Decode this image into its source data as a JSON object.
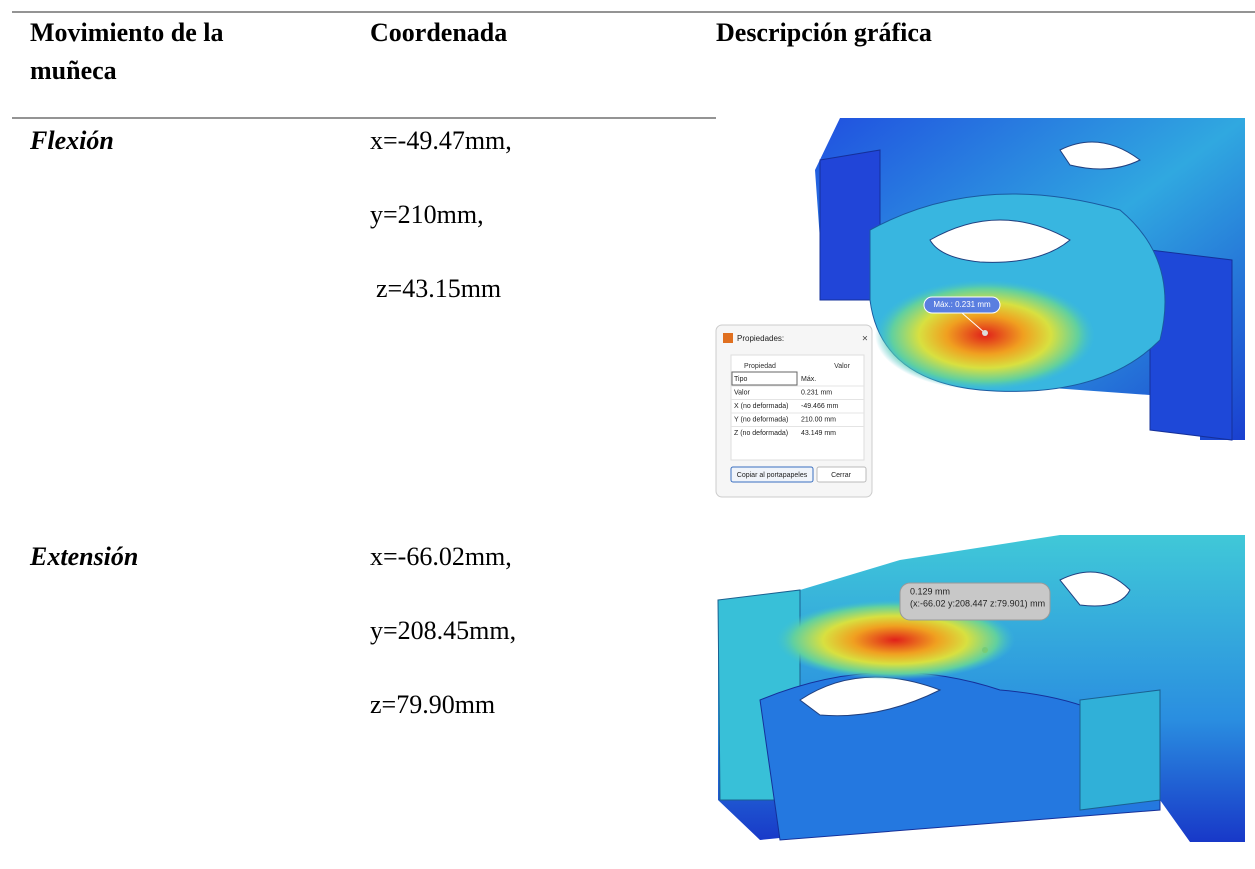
{
  "table": {
    "header": [
      "Movimiento de la muñeca",
      "Coordenada",
      "Descripción gráfica"
    ],
    "rows": [
      {
        "movement": "Flexión",
        "coordinates": [
          "x=-49.47mm,",
          "y=210mm,",
          "z=43.15mm"
        ],
        "figure": {
          "annotation": "Máx.: 0.231 mm",
          "dialog": {
            "title": "Propiedades:",
            "columns": [
              "Propiedad",
              "Valor"
            ],
            "rows": [
              [
                "Tipo",
                "Máx."
              ],
              [
                "Valor",
                "0.231 mm"
              ],
              [
                "X (no deformada)",
                "-49.466 mm"
              ],
              [
                "Y (no deformada)",
                "210.00 mm"
              ],
              [
                "Z (no deformada)",
                "43.149 mm"
              ]
            ],
            "buttons": [
              "Copiar al portapapeles",
              "Cerrar"
            ]
          }
        }
      },
      {
        "movement": "Extensión",
        "coordinates": [
          "x=-66.02mm,",
          "y=208.45mm,",
          "z=79.90mm"
        ],
        "figure": {
          "annotation": [
            "0.129 mm",
            "(x:-66.02 y:208.447 z:79.901) mm"
          ]
        }
      }
    ]
  }
}
